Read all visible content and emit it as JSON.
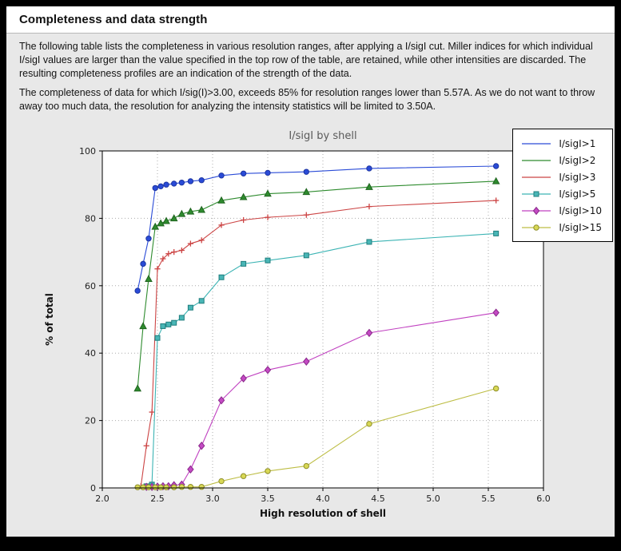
{
  "page": {
    "title": "Completeness and data strength"
  },
  "intro": {
    "paragraph1": "The following table lists the completeness in various resolution ranges, after applying a I/sigI cut. Miller indices for which individual I/sigI values are larger than the value specified in the top row of the table, are retained, while other intensities are discarded. The resulting completeness profiles are an indication of the strength of the data.",
    "paragraph2": "The completeness of data for which I/sig(I)>3.00, exceeds  85% for resolution ranges lower than 5.57A. As we do not want to throw away too much data, the resolution for analyzing the intensity statistics will be limited to 3.50A."
  },
  "chart_data": {
    "type": "line",
    "title": "I/sigI by shell",
    "xlabel": "High resolution of shell",
    "ylabel": "% of total",
    "xlim": [
      2.0,
      6.0
    ],
    "ylim": [
      0,
      100
    ],
    "grid": true,
    "legend_position": "top-right",
    "x_ticks": [
      2.0,
      2.5,
      3.0,
      3.5,
      4.0,
      4.5,
      5.0,
      5.5,
      6.0
    ],
    "x_tick_labels": [
      "2.0",
      "2.5",
      "3.0",
      "3.5",
      "4.0",
      "4.5",
      "5.0",
      "5.5",
      "6.0"
    ],
    "y_ticks": [
      0,
      20,
      40,
      60,
      80,
      100
    ],
    "y_tick_labels": [
      "0",
      "20",
      "40",
      "60",
      "80",
      "100"
    ],
    "series": [
      {
        "name": "I/sigI>1",
        "color": "#2a4bd7",
        "marker": "circle",
        "marker_fill": "#2a4bd7",
        "marker_edge": "#1c34a0",
        "legend_marker": false,
        "x": [
          2.32,
          2.37,
          2.42,
          2.48,
          2.53,
          2.58,
          2.65,
          2.72,
          2.8,
          2.9,
          3.08,
          3.28,
          3.5,
          3.85,
          4.42,
          5.57
        ],
        "y": [
          58.5,
          66.5,
          74.0,
          89.0,
          89.5,
          90.0,
          90.3,
          90.6,
          91.0,
          91.3,
          92.7,
          93.3,
          93.5,
          93.8,
          94.8,
          95.5
        ]
      },
      {
        "name": "I/sigI>2",
        "color": "#2e8b2e",
        "marker": "triangle",
        "marker_fill": "#2e8b2e",
        "marker_edge": "#1f641f",
        "legend_marker": false,
        "x": [
          2.32,
          2.37,
          2.42,
          2.48,
          2.53,
          2.58,
          2.65,
          2.72,
          2.8,
          2.9,
          3.08,
          3.28,
          3.5,
          3.85,
          4.42,
          5.57
        ],
        "y": [
          29.5,
          48.0,
          62.0,
          77.5,
          78.5,
          79.2,
          80.0,
          81.3,
          82.0,
          82.5,
          85.3,
          86.3,
          87.3,
          87.8,
          89.3,
          91.0
        ]
      },
      {
        "name": "I/sigI>3",
        "color": "#cc4444",
        "marker": "plus",
        "marker_fill": "#cc4444",
        "marker_edge": "#cc4444",
        "legend_marker": false,
        "x": [
          2.35,
          2.4,
          2.45,
          2.5,
          2.55,
          2.6,
          2.65,
          2.72,
          2.8,
          2.9,
          3.08,
          3.28,
          3.5,
          3.85,
          4.42,
          5.57
        ],
        "y": [
          0.5,
          12.5,
          22.5,
          65.0,
          68.0,
          69.5,
          70.0,
          70.5,
          72.5,
          73.5,
          78.0,
          79.5,
          80.3,
          81.0,
          83.5,
          85.3
        ]
      },
      {
        "name": "I/sigI>5",
        "color": "#3cb4b4",
        "marker": "square",
        "marker_fill": "#49b6b6",
        "marker_edge": "#1f7d7d",
        "legend_marker": true,
        "x": [
          2.4,
          2.45,
          2.5,
          2.55,
          2.6,
          2.65,
          2.72,
          2.8,
          2.9,
          3.08,
          3.28,
          3.5,
          3.85,
          4.42,
          5.57
        ],
        "y": [
          0.5,
          1.0,
          44.5,
          48.0,
          48.5,
          49.0,
          50.5,
          53.5,
          55.5,
          62.5,
          66.5,
          67.5,
          69.0,
          73.0,
          75.5
        ]
      },
      {
        "name": "I/sigI>10",
        "color": "#c040c0",
        "marker": "diamond",
        "marker_fill": "#c44ac4",
        "marker_edge": "#8a2a8a",
        "legend_marker": true,
        "x": [
          2.4,
          2.45,
          2.5,
          2.55,
          2.6,
          2.65,
          2.72,
          2.8,
          2.9,
          3.08,
          3.28,
          3.5,
          3.85,
          4.42,
          5.57
        ],
        "y": [
          0.3,
          0.3,
          0.4,
          0.5,
          0.5,
          0.8,
          1.0,
          5.5,
          12.5,
          26.0,
          32.5,
          35.0,
          37.5,
          46.0,
          52.0
        ]
      },
      {
        "name": "I/sigI>15",
        "color": "#bdbd44",
        "marker": "circle",
        "marker_fill": "#d8d855",
        "marker_edge": "#8f8f2a",
        "legend_marker": true,
        "x": [
          2.32,
          2.37,
          2.42,
          2.48,
          2.53,
          2.58,
          2.65,
          2.72,
          2.8,
          2.9,
          3.08,
          3.28,
          3.5,
          3.85,
          4.42,
          5.57
        ],
        "y": [
          0.2,
          0.2,
          0.2,
          0.2,
          0.2,
          0.2,
          0.2,
          0.3,
          0.3,
          0.3,
          2.0,
          3.5,
          5.0,
          6.5,
          19.0,
          29.5
        ]
      }
    ]
  }
}
